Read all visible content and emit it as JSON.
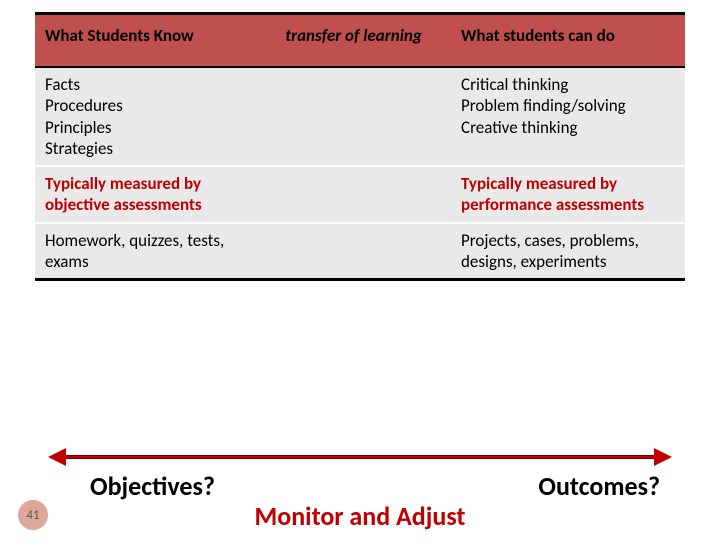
{
  "header": {
    "left": "What Students Know",
    "mid": "transfer of learning",
    "right": "What students can do",
    "bg_color": "#c0504d"
  },
  "rows": [
    {
      "left": "Facts\nProcedures\nPrinciples\nStrategies",
      "right": "Critical thinking\nProblem finding/solving\nCreative thinking",
      "highlight": false
    },
    {
      "left": "Typically measured by objective assessments",
      "right": "Typically measured by performance assessments",
      "highlight": true
    },
    {
      "left": "Homework, quizzes, tests, exams",
      "right": "Projects, cases, problems, designs, experiments",
      "highlight": false
    }
  ],
  "bottom": {
    "left_label": "Objectives?",
    "right_label": "Outcomes?",
    "center_label": "Monitor and Adjust",
    "arrow_color": "#c00000"
  },
  "slide_number": "41",
  "colors": {
    "highlight_text": "#c00000",
    "row_bg": "#e9e9e9"
  }
}
